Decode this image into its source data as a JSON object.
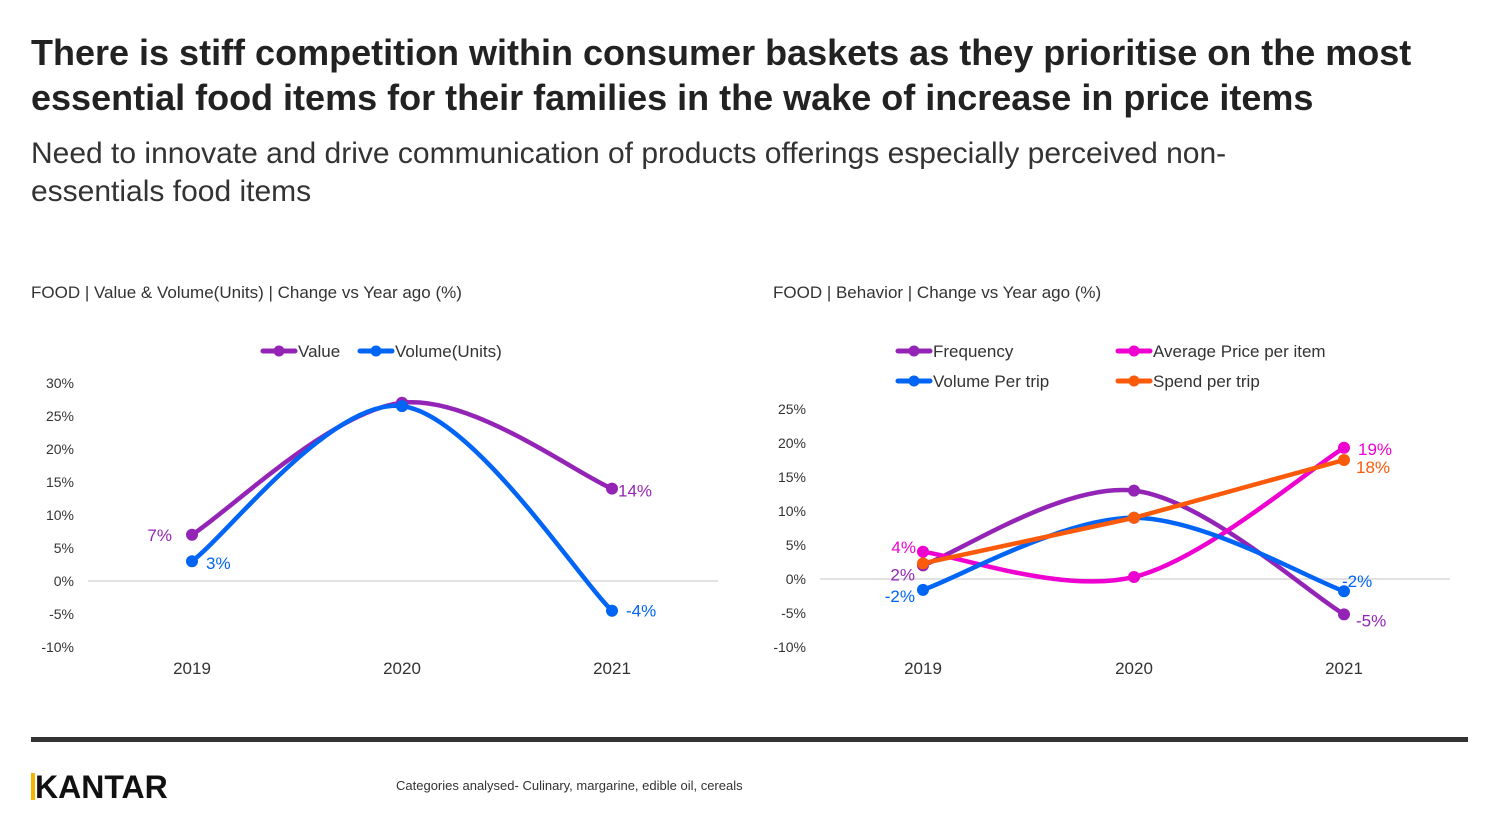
{
  "header": {
    "title": "There is stiff competition within consumer baskets as they prioritise on the most essential food items for their families in the wake of increase in price items",
    "subtitle": "Need to innovate and drive communication of products offerings especially perceived non-essentials food items"
  },
  "chart_data": [
    {
      "type": "line",
      "title": "FOOD | Value & Volume(Units) | Change vs Year ago (%)",
      "categories": [
        "2019",
        "2020",
        "2021"
      ],
      "ylim": [
        -10,
        30
      ],
      "yticks": [
        30,
        25,
        20,
        15,
        10,
        5,
        0,
        -5,
        -10
      ],
      "ytick_labels": [
        "30%",
        "25%",
        "20%",
        "15%",
        "10%",
        "5%",
        "0%",
        "-5%",
        "-10%"
      ],
      "legend_position": "top",
      "series": [
        {
          "name": "Value",
          "color": "#9424b6",
          "smooth": true,
          "values": [
            7,
            27,
            14
          ],
          "labels": [
            "7%",
            "",
            "14%"
          ]
        },
        {
          "name": "Volume(Units)",
          "color": "#0064f5",
          "smooth": true,
          "values": [
            3,
            26.5,
            -4.5
          ],
          "labels": [
            "3%",
            "",
            "-4%"
          ]
        }
      ]
    },
    {
      "type": "line",
      "title": "FOOD | Behavior | Change vs Year ago (%)",
      "categories": [
        "2019",
        "2020",
        "2021"
      ],
      "ylim": [
        -10,
        25
      ],
      "yticks": [
        25,
        20,
        15,
        10,
        5,
        0,
        -5,
        -10
      ],
      "ytick_labels": [
        "25%",
        "20%",
        "15%",
        "10%",
        "5%",
        "0%",
        "-5%",
        "-10%"
      ],
      "legend_position": "top",
      "series": [
        {
          "name": "Frequency",
          "color": "#9424b6",
          "smooth": true,
          "values": [
            2,
            13,
            -5.2
          ],
          "labels": [
            "2%",
            "",
            "-5%"
          ]
        },
        {
          "name": "Average Price per item",
          "color": "#ee00d0",
          "smooth": true,
          "values": [
            4,
            0.3,
            19.3
          ],
          "labels": [
            "4%",
            "",
            "19%"
          ]
        },
        {
          "name": "Volume Per trip",
          "color": "#0064f5",
          "smooth": true,
          "values": [
            -1.6,
            9,
            -1.8
          ],
          "labels": [
            "-2%",
            "",
            "-2%"
          ]
        },
        {
          "name": "Spend per trip",
          "color": "#fa5a0a",
          "smooth": false,
          "values": [
            2.3,
            9,
            17.5
          ],
          "labels": [
            "",
            "",
            "18%"
          ]
        }
      ]
    }
  ],
  "footer": {
    "logo": "KANTAR",
    "note": "Categories analysed- Culinary, margarine, edible oil, cereals"
  }
}
